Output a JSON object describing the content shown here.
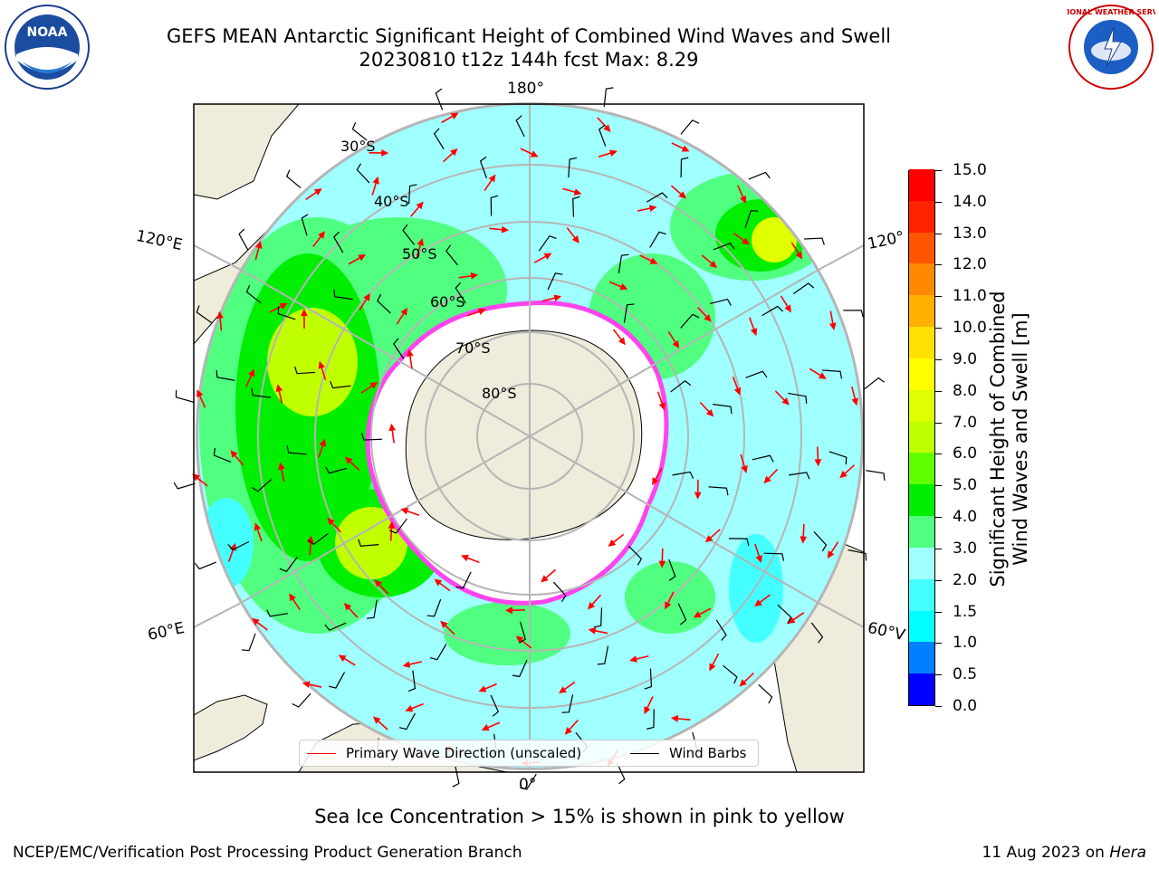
{
  "header": {
    "title_line1": "GEFS MEAN Antarctic Significant Height of Combined Wind Waves and Swell",
    "title_line2": "20230810 t12z 144h fcst   Max: 8.29"
  },
  "logos": {
    "left": {
      "icon": "noaa-logo",
      "text": "NOAA"
    },
    "right": {
      "icon": "nws-logo",
      "text": "NATIONAL WEATHER SERVICE"
    }
  },
  "map": {
    "longitude_labels": {
      "top": "180°",
      "bottom": "0°",
      "upper_left": "120°E",
      "lower_left": "60°E",
      "upper_right": "120°",
      "lower_right": "60°V"
    },
    "latitude_labels": [
      "30°S",
      "40°S",
      "50°S",
      "60°S",
      "70°S",
      "80°S"
    ],
    "colors": {
      "ocean_base": "#a0ffff",
      "land": "#efecdc",
      "antarctic_ice": "#ffffff",
      "sea_ice_edge": "#ff44ee",
      "grid": "#b5b5b5",
      "wave_arrow": "#ff0000",
      "wind_barb": "#000000"
    }
  },
  "colorbar": {
    "title": "Significant Height of Combined\nWind Waves and Swell [m]",
    "levels": [
      "0.0",
      "0.5",
      "1.0",
      "1.5",
      "2.0",
      "3.0",
      "4.0",
      "5.0",
      "6.0",
      "7.0",
      "8.0",
      "9.0",
      "10.0",
      "11.0",
      "12.0",
      "13.0",
      "14.0",
      "15.0"
    ],
    "colors": [
      "#0000ff",
      "#0080ff",
      "#00ffff",
      "#44ffff",
      "#a0ffff",
      "#50ff80",
      "#00ee00",
      "#60ff00",
      "#c0ff00",
      "#e0ff00",
      "#ffff00",
      "#ffe000",
      "#ffb000",
      "#ff8800",
      "#ff5500",
      "#ff2200",
      "#ff0000"
    ]
  },
  "legend": {
    "wave_direction": "Primary Wave Direction (unscaled)",
    "wind_barbs": "Wind Barbs"
  },
  "footer": {
    "ice_note": "Sea Ice Concentration > 15% is shown in pink to yellow",
    "credit_left": "NCEP/EMC/Verification Post Processing Product Generation Branch",
    "date_text": "11 Aug 2023 on ",
    "machine": "Hera"
  }
}
